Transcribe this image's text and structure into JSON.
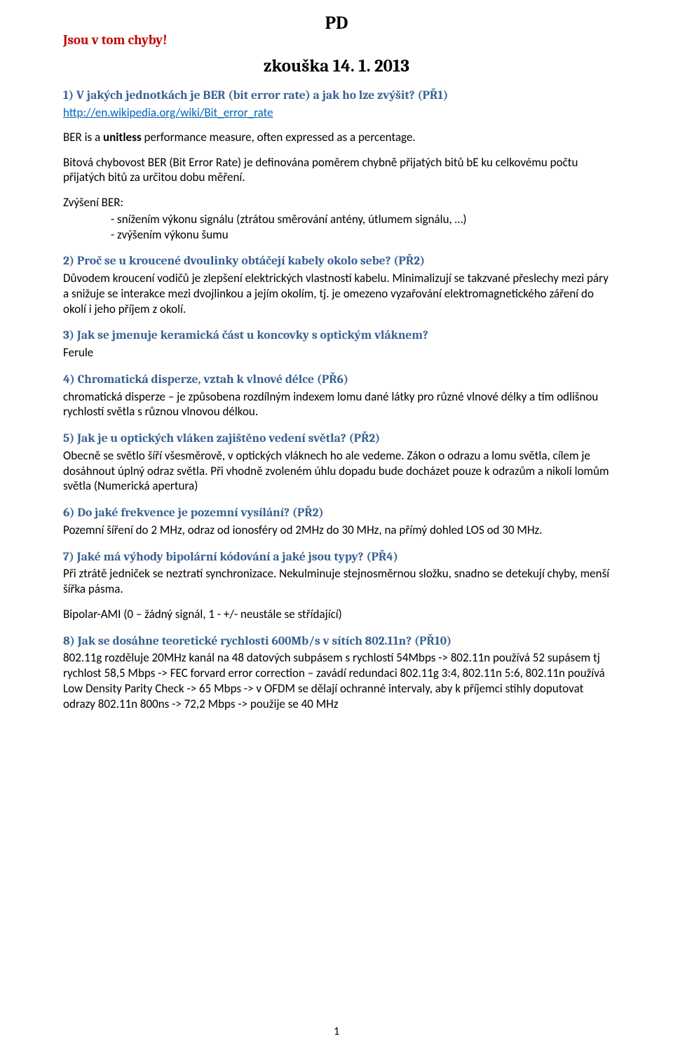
{
  "doc": {
    "title_top": "PD",
    "note_red": "Jsou v tom chyby!",
    "title_main": "zkouška 14. 1. 2013",
    "page_number": "1"
  },
  "q1": {
    "head": "1) V jakých jednotkách je BER (bit error rate) a jak ho lze zvýšit? (PŘ1)",
    "link": "http://en.wikipedia.org/wiki/Bit_error_rate",
    "p1_prefix": "BER is a ",
    "p1_bold": "unitless",
    "p1_suffix": " performance measure, often expressed as a percentage.",
    "p2": "Bitová chybovost BER (Bit Error Rate) je definována poměrem chybně přijatých bitů bE ku celkovému počtu přijatých bitů za určitou dobu měření.",
    "p3": "Zvýšení BER:",
    "b1": "- snížením výkonu signálu (ztrátou směrování antény, útlumem signálu, …)",
    "b2": "- zvýšením výkonu šumu"
  },
  "q2": {
    "head": "2) Proč se u kroucené dvoulinky obtáčejí kabely okolo sebe? (PŘ2)",
    "body": "Důvodem kroucení vodičů je zlepšení elektrických vlastností kabelu. Minimalizují se takzvané přeslechy mezi páry a snižuje se interakce mezi dvojlinkou a jejím okolím, tj. je omezeno vyzařování elektromagnetického záření do okolí i jeho příjem z okolí."
  },
  "q3": {
    "head": "3) Jak se jmenuje keramická část u koncovky s optickým vláknem?",
    "body": "Ferule"
  },
  "q4": {
    "head": "4) Chromatická disperze, vztah k vlnové délce (PŘ6)",
    "body": "chromatická disperze – je způsobena rozdílným indexem lomu dané látky pro různé vlnové délky a tím odlišnou rychlostí světla s různou vlnovou délkou."
  },
  "q5": {
    "head": "5) Jak je u optických vláken zajištěno vedení světla? (PŘ2)",
    "body": "Obecně se světlo šíří všesměrově, v optických vláknech ho ale vedeme. Zákon o odrazu a lomu světla, cílem je dosáhnout úplný odraz světla. Při vhodně zvoleném úhlu dopadu bude docházet pouze k odrazům a nikoli lomům světla (Numerická apertura)"
  },
  "q6": {
    "head": "6) Do jaké frekvence je pozemní vysílání? (PŘ2)",
    "body": "Pozemní šíření do 2 MHz, odraz od ionosféry od 2MHz do 30 MHz, na přímý dohled LOS od 30 MHz."
  },
  "q7": {
    "head": "7) Jaké má výhody bipolární kódování a jaké jsou typy? (PŘ4)",
    "body1": "Při ztrátě jedniček se neztratí synchronizace. Nekulminuje stejnosměrnou složku, snadno se detekují chyby, menší šířka pásma.",
    "body2": "Bipolar-AMI (0 – žádný signál, 1 - +/- neustále se střídající)"
  },
  "q8": {
    "head": "8) Jak se dosáhne teoretické rychlosti 600Mb/s v sítích 802.11n? (PŘ10)",
    "body": "802.11g rozděluje 20MHz kanál na 48 datových subpásem s rychlostí 54Mbps -> 802.11n používá 52 supásem tj rychlost 58,5 Mbps -> FEC forvard error correction – zavádí redundaci 802.11g 3:4, 802.11n 5:6, 802.11n používá Low Density Parity Check -> 65 Mbps -> v OFDM se dělají ochranné intervaly, aby k příjemci stihly doputovat odrazy 802.11n 800ns -> 72,2 Mbps -> použije se 40 MHz"
  }
}
